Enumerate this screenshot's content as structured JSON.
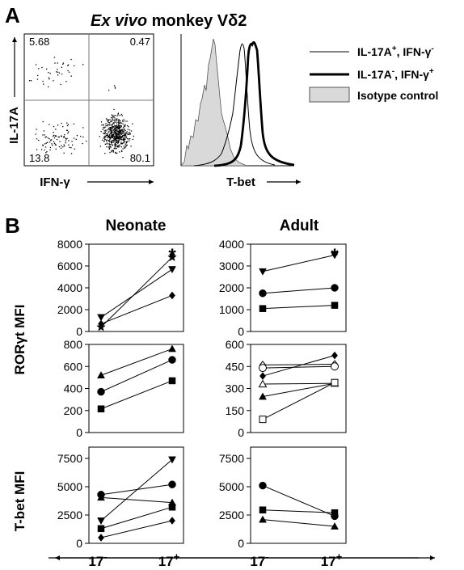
{
  "panel_a": {
    "letter": "A",
    "title_italic": "Ex vivo",
    "title_rest": " monkey Vδ2",
    "scatter": {
      "ylabel": "IL-17A",
      "xlabel": "IFN-γ",
      "quadrants": {
        "ul": "5.68",
        "ur": "0.47",
        "ll": "13.8",
        "lr": "80.1"
      }
    },
    "histogram": {
      "xlabel": "T-bet",
      "legend": [
        {
          "parts": [
            "IL-17A",
            "+",
            ", IFN-γ",
            "-"
          ],
          "style": "thin"
        },
        {
          "parts": [
            "IL-17A",
            "-",
            ", IFN-γ",
            "+"
          ],
          "style": "thick"
        },
        {
          "parts": [
            "Isotype control",
            "",
            "",
            ""
          ],
          "style": "filled"
        }
      ]
    }
  },
  "panel_b": {
    "letter": "B",
    "col_titles": [
      "Neonate",
      "Adult"
    ],
    "row_labels": [
      "RORγt MFI",
      "T-bet MFI"
    ],
    "x_tick_labels": [
      {
        "base": "17",
        "sup": "-"
      },
      {
        "base": "17",
        "sup": "+"
      }
    ]
  },
  "colors": {
    "ink": "#000000",
    "isotype_fill": "#d9d9d9",
    "gate": "#777777"
  },
  "chart_data": [
    {
      "id": "neo-ror-high",
      "type": "line",
      "ylim": [
        0,
        8000
      ],
      "yticks": [
        "0",
        "2000",
        "4000",
        "6000",
        "8000"
      ],
      "star": "*",
      "x_categories": [
        "17-",
        "17+"
      ],
      "series": [
        {
          "marker": "star",
          "values": [
            400,
            6800
          ]
        },
        {
          "marker": "triangle-down",
          "values": [
            1300,
            5700
          ]
        },
        {
          "marker": "diamond",
          "values": [
            700,
            3300
          ]
        }
      ]
    },
    {
      "id": "adult-ror-high",
      "type": "line",
      "ylim": [
        0,
        4000
      ],
      "yticks": [
        "0",
        "1000",
        "2000",
        "3000",
        "4000"
      ],
      "star": "*",
      "x_categories": [
        "17-",
        "17+"
      ],
      "series": [
        {
          "marker": "triangle-down",
          "values": [
            2750,
            3500
          ]
        },
        {
          "marker": "circle",
          "values": [
            1750,
            2000
          ]
        },
        {
          "marker": "square",
          "values": [
            1050,
            1200
          ]
        }
      ]
    },
    {
      "id": "neo-ror-low",
      "type": "line",
      "ylim": [
        0,
        800
      ],
      "yticks": [
        "0",
        "200",
        "400",
        "600",
        "800"
      ],
      "x_categories": [
        "17-",
        "17+"
      ],
      "series": [
        {
          "marker": "triangle-up",
          "values": [
            520,
            760
          ]
        },
        {
          "marker": "circle",
          "values": [
            370,
            660
          ]
        },
        {
          "marker": "square",
          "values": [
            215,
            470
          ]
        }
      ]
    },
    {
      "id": "adult-ror-low",
      "type": "line",
      "ylim": [
        0,
        600
      ],
      "yticks": [
        "0",
        "150",
        "300",
        "450",
        "600"
      ],
      "x_categories": [
        "17-",
        "17+"
      ],
      "series": [
        {
          "marker": "diamond-open",
          "values": [
            460,
            465
          ]
        },
        {
          "marker": "circle-open",
          "values": [
            440,
            450
          ]
        },
        {
          "marker": "diamond",
          "values": [
            385,
            525
          ]
        },
        {
          "marker": "triangle-up-open",
          "values": [
            330,
            335
          ]
        },
        {
          "marker": "triangle-up",
          "values": [
            245,
            335
          ]
        },
        {
          "marker": "square-open",
          "values": [
            90,
            340
          ]
        }
      ]
    },
    {
      "id": "neo-tbet",
      "type": "line",
      "ylim": [
        0,
        8500
      ],
      "yticks": [
        "0",
        "2500",
        "5000",
        "7500"
      ],
      "x_categories": [
        "17-",
        "17+"
      ],
      "series": [
        {
          "marker": "triangle-down",
          "values": [
            2000,
            7400
          ]
        },
        {
          "marker": "circle",
          "values": [
            4300,
            5200
          ]
        },
        {
          "marker": "triangle-up",
          "values": [
            4050,
            3600
          ]
        },
        {
          "marker": "square",
          "values": [
            1300,
            3200
          ]
        },
        {
          "marker": "diamond",
          "values": [
            500,
            2000
          ]
        }
      ]
    },
    {
      "id": "adult-tbet",
      "type": "line",
      "ylim": [
        0,
        8500
      ],
      "yticks": [
        "0",
        "2500",
        "5000",
        "7500"
      ],
      "x_categories": [
        "17-",
        "17+"
      ],
      "series": [
        {
          "marker": "circle",
          "values": [
            5100,
            2400
          ]
        },
        {
          "marker": "square",
          "values": [
            2950,
            2700
          ]
        },
        {
          "marker": "triangle-up",
          "values": [
            2100,
            1500
          ]
        }
      ]
    }
  ]
}
